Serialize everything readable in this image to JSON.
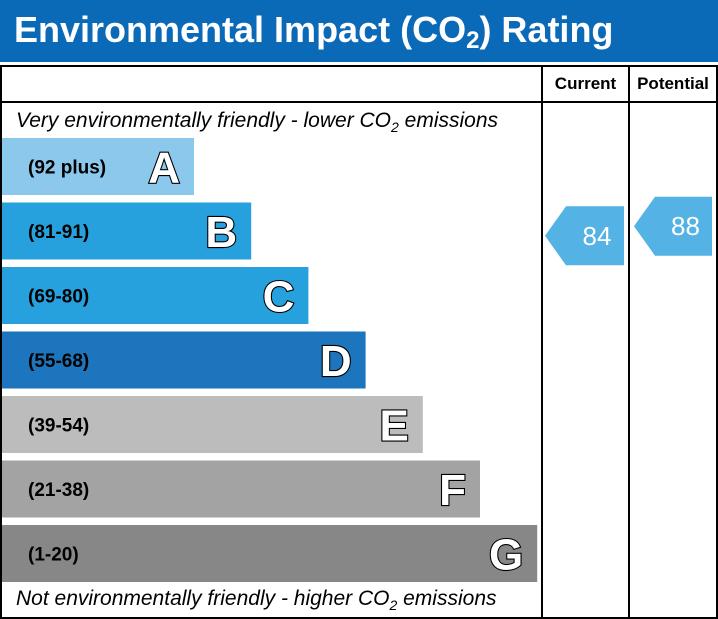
{
  "header": {
    "title_prefix": "Environmental Impact (CO",
    "title_sub": "2",
    "title_suffix": ") Rating"
  },
  "columns": {
    "current": "Current",
    "potential": "Potential"
  },
  "captions": {
    "top_prefix": "Very environmentally friendly - lower CO",
    "top_sub": "2",
    "top_suffix": " emissions",
    "bottom_prefix": "Not environmentally friendly - higher CO",
    "bottom_sub": "2",
    "bottom_suffix": " emissions"
  },
  "chart_data": {
    "type": "bar",
    "categories": [
      "A",
      "B",
      "C",
      "D",
      "E",
      "F",
      "G"
    ],
    "ranges": [
      "(92 plus)",
      "(81-91)",
      "(69-80)",
      "(55-68)",
      "(39-54)",
      "(21-38)",
      "(1-20)"
    ],
    "colors": [
      "#8cc8ec",
      "#27a1de",
      "#27a1de",
      "#1c75bd",
      "#bcbcbc",
      "#a3a3a3",
      "#878787"
    ],
    "current": {
      "value": 84,
      "band": "B",
      "color": "#55b2e4"
    },
    "potential": {
      "value": 88,
      "band": "B",
      "color": "#55b2e4"
    }
  }
}
